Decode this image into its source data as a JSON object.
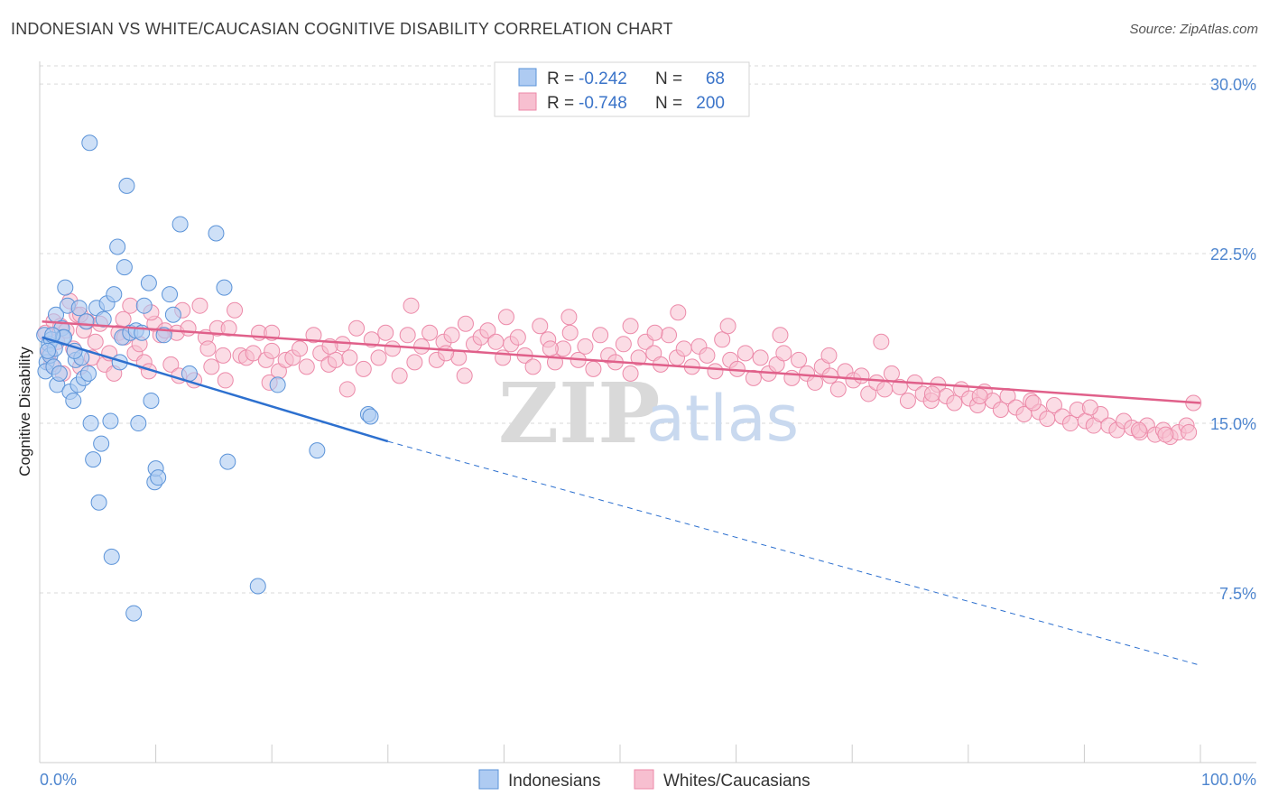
{
  "title": "INDONESIAN VS WHITE/CAUCASIAN COGNITIVE DISABILITY CORRELATION CHART",
  "source": "Source: ZipAtlas.com",
  "watermark": {
    "zip": "ZIP",
    "atlas": "atlas"
  },
  "colors": {
    "indonesian_fill": "#aecbf2",
    "indonesian_stroke": "#5b93d8",
    "indonesian_line": "#2d70cf",
    "white_fill": "#f7bfd0",
    "white_stroke": "#ec8aa9",
    "white_line": "#e0608a",
    "grid": "#d9d9d9",
    "tick_text": "#4f86cf"
  },
  "legend": {
    "rows": [
      {
        "r_label": "R =",
        "r_value": "-0.242",
        "n_label": "N =",
        "n_value": "68"
      },
      {
        "r_label": "R =",
        "r_value": "-0.748",
        "n_label": "N =",
        "n_value": "200"
      }
    ]
  },
  "bottom_legend": [
    "Indonesians",
    "Whites/Caucasians"
  ],
  "chart_data": {
    "type": "scatter",
    "title": "INDONESIAN VS WHITE/CAUCASIAN COGNITIVE DISABILITY CORRELATION CHART",
    "xlabel": "",
    "ylabel": "Cognitive Disability",
    "xlim": [
      0,
      100
    ],
    "ylim": [
      0,
      31
    ],
    "x_tick_labels": [
      "0.0%",
      "100.0%"
    ],
    "y_ticks": [
      7.5,
      15.0,
      22.5,
      30.0
    ],
    "y_tick_labels": [
      "7.5%",
      "15.0%",
      "22.5%",
      "30.0%"
    ],
    "grid": true,
    "legend_position": "top-center",
    "series": [
      {
        "name": "Indonesians",
        "r": -0.242,
        "n": 68,
        "trend": {
          "x_start": 0.2,
          "y_start": 18.8,
          "x_end": 30.0,
          "y_end": 14.2,
          "dashed_to_x": 100.0,
          "dashed_to_y": 4.3
        },
        "points": [
          [
            0.4,
            18.9
          ],
          [
            0.6,
            17.7
          ],
          [
            0.5,
            17.3
          ],
          [
            0.8,
            18.5
          ],
          [
            0.9,
            18.0
          ],
          [
            1.0,
            18.7
          ],
          [
            1.2,
            17.5
          ],
          [
            1.4,
            19.8
          ],
          [
            1.5,
            16.7
          ],
          [
            1.7,
            17.2
          ],
          [
            1.9,
            19.2
          ],
          [
            2.0,
            18.8
          ],
          [
            2.2,
            21.0
          ],
          [
            2.4,
            20.2
          ],
          [
            2.6,
            16.4
          ],
          [
            2.9,
            16.0
          ],
          [
            3.1,
            17.8
          ],
          [
            3.3,
            16.7
          ],
          [
            3.4,
            20.1
          ],
          [
            3.6,
            17.9
          ],
          [
            3.8,
            17.0
          ],
          [
            4.0,
            19.5
          ],
          [
            4.2,
            17.2
          ],
          [
            4.4,
            15.0
          ],
          [
            4.6,
            13.4
          ],
          [
            4.9,
            20.1
          ],
          [
            5.1,
            11.5
          ],
          [
            5.3,
            14.1
          ],
          [
            5.5,
            19.6
          ],
          [
            5.8,
            20.3
          ],
          [
            6.1,
            15.1
          ],
          [
            6.2,
            9.1
          ],
          [
            6.4,
            20.7
          ],
          [
            6.7,
            22.8
          ],
          [
            6.9,
            17.7
          ],
          [
            7.1,
            18.8
          ],
          [
            7.3,
            21.9
          ],
          [
            7.5,
            25.5
          ],
          [
            7.8,
            19.0
          ],
          [
            8.1,
            6.6
          ],
          [
            8.3,
            19.1
          ],
          [
            8.5,
            15.0
          ],
          [
            8.8,
            19.0
          ],
          [
            9.0,
            20.2
          ],
          [
            9.4,
            21.2
          ],
          [
            9.6,
            16.0
          ],
          [
            9.9,
            12.4
          ],
          [
            10.0,
            13.0
          ],
          [
            10.2,
            12.6
          ],
          [
            10.7,
            18.9
          ],
          [
            11.2,
            20.7
          ],
          [
            11.5,
            19.8
          ],
          [
            12.1,
            23.8
          ],
          [
            12.9,
            17.2
          ],
          [
            15.2,
            23.4
          ],
          [
            15.9,
            21.0
          ],
          [
            16.2,
            13.3
          ],
          [
            18.8,
            7.8
          ],
          [
            20.5,
            16.7
          ],
          [
            23.9,
            13.8
          ],
          [
            28.3,
            15.4
          ],
          [
            28.5,
            15.3
          ],
          [
            4.3,
            27.4
          ],
          [
            2.1,
            18.8
          ],
          [
            1.3,
            18.3
          ],
          [
            0.7,
            18.2
          ],
          [
            1.1,
            18.9
          ],
          [
            3.0,
            18.2
          ]
        ]
      },
      {
        "name": "Whites/Caucasians",
        "r": -0.748,
        "n": 200,
        "trend": {
          "x_start": 0.2,
          "y_start": 19.5,
          "x_end": 100.0,
          "y_end": 15.9
        },
        "points": [
          [
            0.5,
            19.0
          ],
          [
            0.8,
            18.1
          ],
          [
            1.0,
            17.6
          ],
          [
            1.2,
            19.5
          ],
          [
            1.5,
            18.6
          ],
          [
            1.8,
            19.3
          ],
          [
            2.0,
            17.2
          ],
          [
            2.3,
            19.1
          ],
          [
            2.6,
            20.4
          ],
          [
            2.9,
            18.3
          ],
          [
            3.2,
            19.8
          ],
          [
            3.5,
            17.5
          ],
          [
            3.8,
            19.1
          ],
          [
            4.1,
            19.5
          ],
          [
            4.5,
            17.9
          ],
          [
            4.8,
            18.6
          ],
          [
            5.2,
            19.4
          ],
          [
            5.6,
            17.6
          ],
          [
            6.0,
            18.1
          ],
          [
            6.4,
            17.2
          ],
          [
            6.8,
            19.0
          ],
          [
            7.3,
            18.8
          ],
          [
            7.8,
            20.2
          ],
          [
            8.2,
            18.1
          ],
          [
            8.6,
            18.5
          ],
          [
            9.0,
            17.7
          ],
          [
            9.4,
            17.3
          ],
          [
            9.9,
            19.4
          ],
          [
            10.4,
            18.9
          ],
          [
            10.8,
            19.1
          ],
          [
            11.3,
            17.6
          ],
          [
            11.8,
            19.0
          ],
          [
            12.3,
            20.0
          ],
          [
            12.8,
            19.2
          ],
          [
            13.3,
            16.9
          ],
          [
            13.8,
            20.2
          ],
          [
            14.3,
            18.8
          ],
          [
            14.8,
            17.5
          ],
          [
            15.3,
            19.2
          ],
          [
            15.8,
            18.0
          ],
          [
            16.3,
            19.2
          ],
          [
            16.8,
            20.0
          ],
          [
            17.3,
            18.0
          ],
          [
            17.8,
            17.9
          ],
          [
            18.4,
            18.1
          ],
          [
            18.9,
            19.0
          ],
          [
            19.5,
            17.8
          ],
          [
            20.0,
            18.2
          ],
          [
            20.6,
            17.3
          ],
          [
            21.2,
            17.8
          ],
          [
            21.8,
            17.9
          ],
          [
            22.4,
            18.3
          ],
          [
            23.0,
            17.5
          ],
          [
            23.6,
            18.9
          ],
          [
            24.2,
            18.1
          ],
          [
            24.9,
            17.6
          ],
          [
            25.5,
            17.8
          ],
          [
            26.1,
            18.5
          ],
          [
            26.7,
            17.9
          ],
          [
            27.3,
            19.2
          ],
          [
            27.9,
            17.4
          ],
          [
            28.6,
            18.7
          ],
          [
            29.2,
            17.9
          ],
          [
            29.8,
            19.0
          ],
          [
            30.4,
            18.3
          ],
          [
            31.0,
            17.1
          ],
          [
            31.7,
            18.9
          ],
          [
            32.3,
            17.7
          ],
          [
            32.9,
            18.4
          ],
          [
            33.6,
            19.0
          ],
          [
            34.2,
            17.8
          ],
          [
            34.8,
            18.6
          ],
          [
            35.5,
            18.9
          ],
          [
            36.1,
            17.9
          ],
          [
            36.7,
            19.4
          ],
          [
            37.4,
            18.5
          ],
          [
            38.0,
            18.8
          ],
          [
            38.6,
            19.1
          ],
          [
            39.3,
            18.6
          ],
          [
            39.9,
            17.9
          ],
          [
            40.6,
            18.5
          ],
          [
            41.2,
            18.8
          ],
          [
            41.8,
            18.0
          ],
          [
            42.5,
            17.5
          ],
          [
            43.1,
            19.3
          ],
          [
            43.8,
            18.7
          ],
          [
            44.4,
            17.7
          ],
          [
            45.1,
            18.3
          ],
          [
            45.7,
            19.0
          ],
          [
            46.4,
            17.8
          ],
          [
            47.0,
            18.4
          ],
          [
            47.7,
            17.4
          ],
          [
            48.3,
            18.9
          ],
          [
            49.0,
            18.0
          ],
          [
            49.6,
            17.7
          ],
          [
            50.3,
            18.5
          ],
          [
            50.9,
            17.2
          ],
          [
            51.6,
            17.9
          ],
          [
            52.2,
            18.6
          ],
          [
            52.9,
            18.1
          ],
          [
            53.5,
            17.6
          ],
          [
            54.2,
            18.9
          ],
          [
            54.9,
            17.9
          ],
          [
            55.5,
            18.3
          ],
          [
            56.2,
            17.5
          ],
          [
            56.8,
            18.4
          ],
          [
            57.5,
            18.0
          ],
          [
            58.2,
            17.3
          ],
          [
            58.8,
            18.7
          ],
          [
            59.5,
            17.8
          ],
          [
            60.1,
            17.4
          ],
          [
            60.8,
            18.1
          ],
          [
            61.5,
            17.0
          ],
          [
            62.1,
            17.9
          ],
          [
            62.8,
            17.2
          ],
          [
            63.5,
            17.6
          ],
          [
            64.1,
            18.1
          ],
          [
            64.8,
            17.0
          ],
          [
            65.4,
            17.8
          ],
          [
            66.1,
            17.2
          ],
          [
            66.8,
            16.8
          ],
          [
            67.4,
            17.5
          ],
          [
            68.1,
            17.1
          ],
          [
            68.8,
            16.5
          ],
          [
            69.4,
            17.3
          ],
          [
            70.1,
            16.9
          ],
          [
            70.8,
            17.1
          ],
          [
            71.4,
            16.3
          ],
          [
            72.1,
            16.8
          ],
          [
            72.8,
            16.5
          ],
          [
            73.4,
            17.2
          ],
          [
            74.1,
            16.6
          ],
          [
            74.8,
            16.0
          ],
          [
            75.4,
            16.8
          ],
          [
            76.1,
            16.3
          ],
          [
            76.8,
            16.0
          ],
          [
            77.4,
            16.7
          ],
          [
            78.1,
            16.2
          ],
          [
            78.8,
            15.9
          ],
          [
            79.4,
            16.5
          ],
          [
            80.1,
            16.1
          ],
          [
            80.8,
            15.8
          ],
          [
            81.4,
            16.4
          ],
          [
            82.1,
            16.0
          ],
          [
            82.8,
            15.6
          ],
          [
            83.4,
            16.2
          ],
          [
            84.1,
            15.7
          ],
          [
            84.8,
            15.4
          ],
          [
            85.4,
            16.0
          ],
          [
            86.1,
            15.5
          ],
          [
            86.8,
            15.2
          ],
          [
            87.4,
            15.8
          ],
          [
            88.1,
            15.3
          ],
          [
            88.8,
            15.0
          ],
          [
            89.4,
            15.6
          ],
          [
            90.1,
            15.1
          ],
          [
            90.8,
            14.9
          ],
          [
            91.4,
            15.4
          ],
          [
            92.1,
            14.9
          ],
          [
            92.8,
            14.7
          ],
          [
            93.4,
            15.1
          ],
          [
            94.1,
            14.8
          ],
          [
            94.8,
            14.6
          ],
          [
            95.4,
            14.9
          ],
          [
            96.1,
            14.5
          ],
          [
            96.8,
            14.7
          ],
          [
            97.4,
            14.4
          ],
          [
            98.1,
            14.6
          ],
          [
            98.8,
            14.9
          ],
          [
            99.4,
            15.9
          ],
          [
            7.2,
            19.6
          ],
          [
            9.6,
            19.9
          ],
          [
            12.0,
            17.1
          ],
          [
            16.0,
            16.9
          ],
          [
            19.8,
            16.8
          ],
          [
            26.5,
            16.5
          ],
          [
            32.0,
            20.2
          ],
          [
            36.6,
            17.1
          ],
          [
            40.2,
            19.7
          ],
          [
            45.6,
            19.7
          ],
          [
            50.9,
            19.3
          ],
          [
            55.0,
            19.9
          ],
          [
            59.3,
            19.3
          ],
          [
            63.8,
            18.9
          ],
          [
            68.0,
            18.0
          ],
          [
            72.5,
            18.6
          ],
          [
            76.9,
            16.3
          ],
          [
            81.0,
            16.2
          ],
          [
            85.6,
            15.9
          ],
          [
            90.5,
            15.7
          ],
          [
            94.7,
            14.7
          ],
          [
            97.0,
            14.5
          ],
          [
            99.0,
            14.6
          ],
          [
            53.0,
            19.0
          ],
          [
            44.0,
            18.3
          ],
          [
            35.0,
            18.1
          ],
          [
            25.0,
            18.4
          ],
          [
            20.0,
            19.0
          ],
          [
            14.5,
            18.3
          ],
          [
            3.5,
            19.8
          ]
        ]
      }
    ]
  }
}
